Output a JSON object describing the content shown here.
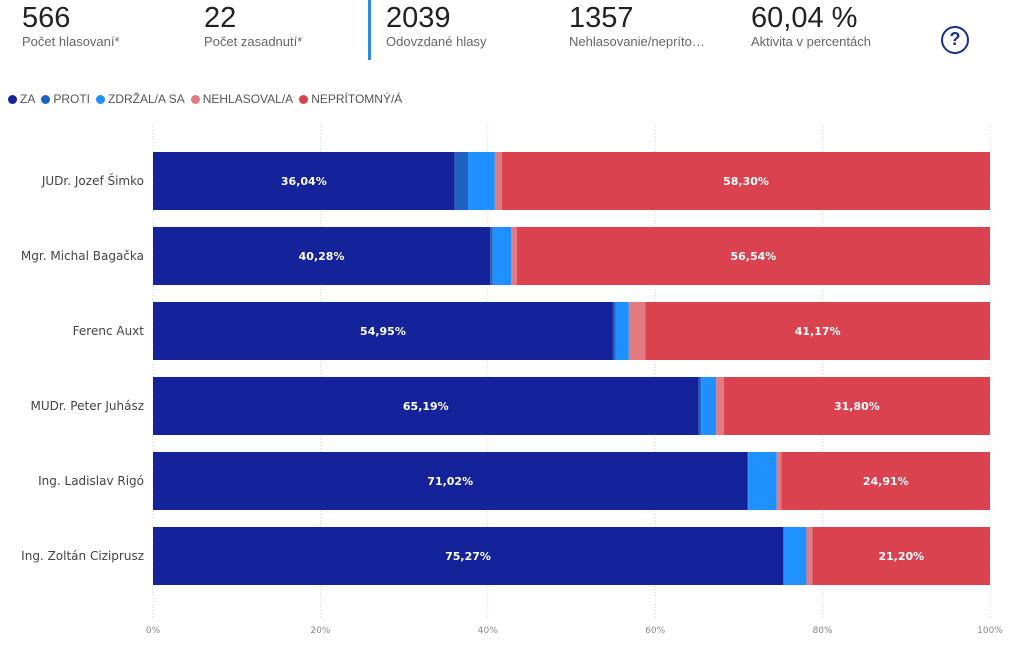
{
  "kpis": [
    {
      "value": "566",
      "label": "Počet hlasovaní*"
    },
    {
      "value": "22",
      "label": "Počet zasadnutí*"
    },
    {
      "value": "2039",
      "label": "Odovzdané hlasy"
    },
    {
      "value": "1357",
      "label": "Nehlasovanie/neprítо…"
    },
    {
      "value": "60,04 %",
      "label": "Aktivita v percentách"
    }
  ],
  "help_button": {
    "label": "?"
  },
  "colors": {
    "za": "#14239a",
    "proti": "#1c62c0",
    "zdrzal": "#1e90ff",
    "nehlasoval": "#e27a80",
    "nepritomny": "#d9424e",
    "accent": "#2b8be0"
  },
  "chart_data": {
    "type": "bar",
    "orientation": "horizontal",
    "stacked": true,
    "categories": [
      "JUDr. Jozef Šimko",
      "Mgr. Michal Bagačka",
      "Ferenc Auxt",
      "MUDr. Peter Juhász",
      "Ing. Ladislav Rigó",
      "Ing. Zoltán Ciziprusz"
    ],
    "series": [
      {
        "name": "ZA",
        "color": "#14239a",
        "values": [
          36.04,
          40.28,
          54.95,
          65.19,
          71.02,
          75.27
        ]
      },
      {
        "name": "PROTI",
        "color": "#1c62c0",
        "values": [
          1.6,
          0.3,
          0.3,
          0.3,
          0.1,
          0.1
        ]
      },
      {
        "name": "ZDRŽAL/A SA",
        "color": "#1e90ff",
        "values": [
          3.2,
          2.2,
          1.6,
          1.8,
          3.4,
          2.7
        ]
      },
      {
        "name": "NEHLASOVAL/A",
        "color": "#e27a80",
        "values": [
          0.86,
          0.68,
          1.98,
          0.91,
          0.57,
          0.73
        ]
      },
      {
        "name": "NEPRÍTOMNÝ/Á",
        "color": "#d9424e",
        "values": [
          58.3,
          56.54,
          41.17,
          31.8,
          24.91,
          21.2
        ]
      }
    ],
    "data_labels": {
      "ZA": [
        "36,04%",
        "40,28%",
        "54,95%",
        "65,19%",
        "71,02%",
        "75,27%"
      ],
      "NEPRÍTOMNÝ/Á": [
        "58,30%",
        "56,54%",
        "41,17%",
        "31,80%",
        "24,91%",
        "21,20%"
      ]
    },
    "x_ticks": [
      "0%",
      "20%",
      "40%",
      "60%",
      "80%",
      "100%"
    ],
    "xlim": [
      0,
      100
    ],
    "grid": true,
    "legend_position": "top-left"
  }
}
